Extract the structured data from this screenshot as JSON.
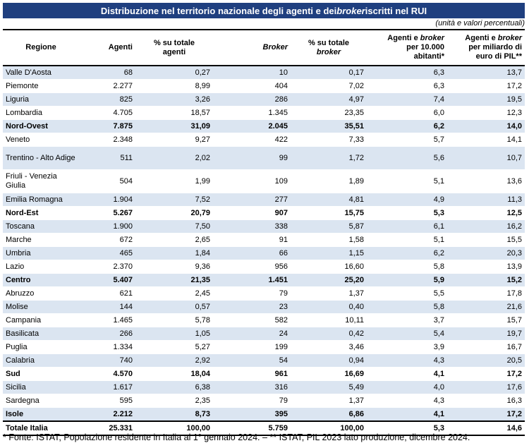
{
  "title": {
    "pre": "Distribuzione nel territorio nazionale degli agenti e dei ",
    "italic": "broker",
    "post": " iscritti nel RUI"
  },
  "subtitle": "(unità e valori percentuali)",
  "headers": {
    "regione": "Regione",
    "agenti": "Agenti",
    "pct_agenti_1": "% su totale",
    "pct_agenti_2": "agenti",
    "broker": "Broker",
    "pct_broker_1": "% su totale",
    "pct_broker_2": "broker",
    "ab_1_pre": "Agenti e ",
    "ab_1_it": "broker",
    "ab_2": "per 10.000",
    "ab_3": "abitanti*",
    "pil_1_pre": "Agenti e ",
    "pil_1_it": "broker",
    "pil_2": "per miliardo di",
    "pil_3": "euro di PIL**"
  },
  "rows": [
    {
      "r": "Valle D'Aosta",
      "a": "68",
      "pa": "0,27",
      "b": "10",
      "pb": "0,17",
      "ab": "6,3",
      "pil": "13,7"
    },
    {
      "r": "Piemonte",
      "a": "2.277",
      "pa": "8,99",
      "b": "404",
      "pb": "7,02",
      "ab": "6,3",
      "pil": "17,2"
    },
    {
      "r": "Liguria",
      "a": "825",
      "pa": "3,26",
      "b": "286",
      "pb": "4,97",
      "ab": "7,4",
      "pil": "19,5"
    },
    {
      "r": "Lombardia",
      "a": "4.705",
      "pa": "18,57",
      "b": "1.345",
      "pb": "23,35",
      "ab": "6,0",
      "pil": "12,3"
    },
    {
      "r": "Nord-Ovest",
      "a": "7.875",
      "pa": "31,09",
      "b": "2.045",
      "pb": "35,51",
      "ab": "6,2",
      "pil": "14,0"
    },
    {
      "r": "Veneto",
      "a": "2.348",
      "pa": "9,27",
      "b": "422",
      "pb": "7,33",
      "ab": "5,7",
      "pil": "14,1"
    },
    {
      "r": "Trentino - Alto Adige",
      "a": "511",
      "pa": "2,02",
      "b": "99",
      "pb": "1,72",
      "ab": "5,6",
      "pil": "10,7"
    },
    {
      "r": "Friuli - Venezia Giulia",
      "a": "504",
      "pa": "1,99",
      "b": "109",
      "pb": "1,89",
      "ab": "5,1",
      "pil": "13,6"
    },
    {
      "r": "Emilia Romagna",
      "a": "1.904",
      "pa": "7,52",
      "b": "277",
      "pb": "4,81",
      "ab": "4,9",
      "pil": "11,3"
    },
    {
      "r": "Nord-Est",
      "a": "5.267",
      "pa": "20,79",
      "b": "907",
      "pb": "15,75",
      "ab": "5,3",
      "pil": "12,5"
    },
    {
      "r": "Toscana",
      "a": "1.900",
      "pa": "7,50",
      "b": "338",
      "pb": "5,87",
      "ab": "6,1",
      "pil": "16,2"
    },
    {
      "r": "Marche",
      "a": "672",
      "pa": "2,65",
      "b": "91",
      "pb": "1,58",
      "ab": "5,1",
      "pil": "15,5"
    },
    {
      "r": "Umbria",
      "a": "465",
      "pa": "1,84",
      "b": "66",
      "pb": "1,15",
      "ab": "6,2",
      "pil": "20,3"
    },
    {
      "r": "Lazio",
      "a": "2.370",
      "pa": "9,36",
      "b": "956",
      "pb": "16,60",
      "ab": "5,8",
      "pil": "13,9"
    },
    {
      "r": "Centro",
      "a": "5.407",
      "pa": "21,35",
      "b": "1.451",
      "pb": "25,20",
      "ab": "5,9",
      "pil": "15,2"
    },
    {
      "r": "Abruzzo",
      "a": "621",
      "pa": "2,45",
      "b": "79",
      "pb": "1,37",
      "ab": "5,5",
      "pil": "17,8"
    },
    {
      "r": "Molise",
      "a": "144",
      "pa": "0,57",
      "b": "23",
      "pb": "0,40",
      "ab": "5,8",
      "pil": "21,6"
    },
    {
      "r": "Campania",
      "a": "1.465",
      "pa": "5,78",
      "b": "582",
      "pb": "10,11",
      "ab": "3,7",
      "pil": "15,7"
    },
    {
      "r": "Basilicata",
      "a": "266",
      "pa": "1,05",
      "b": "24",
      "pb": "0,42",
      "ab": "5,4",
      "pil": "19,7"
    },
    {
      "r": "Puglia",
      "a": "1.334",
      "pa": "5,27",
      "b": "199",
      "pb": "3,46",
      "ab": "3,9",
      "pil": "16,7"
    },
    {
      "r": "Calabria",
      "a": "740",
      "pa": "2,92",
      "b": "54",
      "pb": "0,94",
      "ab": "4,3",
      "pil": "20,5"
    },
    {
      "r": "Sud",
      "a": "4.570",
      "pa": "18,04",
      "b": "961",
      "pb": "16,69",
      "ab": "4,1",
      "pil": "17,2"
    },
    {
      "r": "Sicilia",
      "a": "1.617",
      "pa": "6,38",
      "b": "316",
      "pb": "5,49",
      "ab": "4,0",
      "pil": "17,6"
    },
    {
      "r": "Sardegna",
      "a": "595",
      "pa": "2,35",
      "b": "79",
      "pb": "1,37",
      "ab": "4,3",
      "pil": "16,3"
    },
    {
      "r": "Isole",
      "a": "2.212",
      "pa": "8,73",
      "b": "395",
      "pb": "6,86",
      "ab": "4,1",
      "pil": "17,2"
    }
  ],
  "total": {
    "r": "Totale Italia",
    "a": "25.331",
    "pa": "100,00",
    "b": "5.759",
    "pb": "100,00",
    "ab": "5,3",
    "pil": "14,6"
  },
  "note": "* Fonte: ISTAT, Popolazione residente in Italia al 1° gennaio 2024. – ** ISTAT, PIL 2023 lato produzione, dicembre 2024."
}
